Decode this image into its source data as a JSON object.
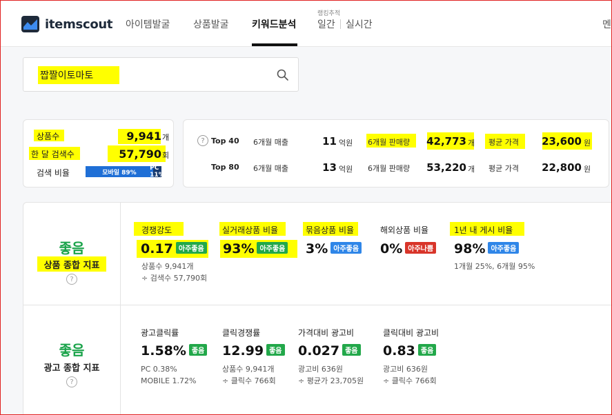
{
  "header": {
    "logo_text": "itemscout",
    "nav": [
      "아이템발굴",
      "상품발굴",
      "키워드분석",
      "일간",
      "실시간"
    ],
    "active_nav": "키워드분석",
    "rank_sub": "랭킹추적",
    "menu_cut": "멘"
  },
  "search": {
    "value": "짭짤이토마토"
  },
  "summary": {
    "product_count_label": "상품수",
    "product_count": "9,941",
    "product_count_unit": "개",
    "monthly_search_label": "한 달 검색수",
    "monthly_search": "57,790",
    "monthly_search_unit": "회",
    "ratio_label": "검색 비율",
    "mobile_label": "모바일 89%",
    "pc_label": "PC 11%",
    "mobile_pct": 89
  },
  "top": {
    "help": "?",
    "rows": [
      {
        "label": "Top 40",
        "sales_label": "6개월 매출",
        "sales": "11",
        "sales_unit": "억원",
        "qty_label": "6개월 판매량",
        "qty": "42,773",
        "qty_unit": "개",
        "price_label": "평균 가격",
        "price": "23,600",
        "price_unit": "원"
      },
      {
        "label": "Top 80",
        "sales_label": "6개월 매출",
        "sales": "13",
        "sales_unit": "억원",
        "qty_label": "6개월 판매량",
        "qty": "53,220",
        "qty_unit": "개",
        "price_label": "평균 가격",
        "price": "22,800",
        "price_unit": "원"
      }
    ]
  },
  "product_index": {
    "grade": "좋음",
    "title": "상품 종합 지표",
    "metrics": [
      {
        "label": "경쟁강도",
        "value": "0.17",
        "badge": "아주좋음",
        "notes": [
          "상품수 9,941개",
          "÷ 검색수 57,790회"
        ]
      },
      {
        "label": "실거래상품 비율",
        "value": "93%",
        "badge": "아주좋음",
        "notes": []
      },
      {
        "label": "묶음상품 비율",
        "value": "3%",
        "badge": "아주좋음",
        "notes": []
      },
      {
        "label": "해외상품 비율",
        "value": "0%",
        "badge": "아주나쁨",
        "notes": []
      },
      {
        "label": "1년 내 게시 비율",
        "value": "98%",
        "badge": "아주좋음",
        "notes": [
          "1개월 25%, 6개월 95%"
        ]
      }
    ]
  },
  "ad_index": {
    "grade": "좋음",
    "title": "광고 종합 지표",
    "metrics": [
      {
        "label": "광고클릭률",
        "value": "1.58%",
        "badge": "좋음",
        "notes": [
          "PC 0.38%",
          "MOBILE 1.72%"
        ]
      },
      {
        "label": "클릭경쟁률",
        "value": "12.99",
        "badge": "좋음",
        "notes": [
          "상품수 9,941개",
          "÷ 클릭수 766회"
        ]
      },
      {
        "label": "가격대비 광고비",
        "value": "0.027",
        "badge": "좋음",
        "notes": [
          "광고비 636원",
          "÷ 평균가 23,705원"
        ]
      },
      {
        "label": "클릭대비 광고비",
        "value": "0.83",
        "badge": "좋음",
        "notes": [
          "광고비 636원",
          "÷ 클릭수 766회"
        ]
      }
    ]
  },
  "colors": {
    "good": "#22a84a",
    "verygood_blue": "#2f86e8",
    "bad": "#d8352a",
    "highlight": "#ffff00"
  }
}
